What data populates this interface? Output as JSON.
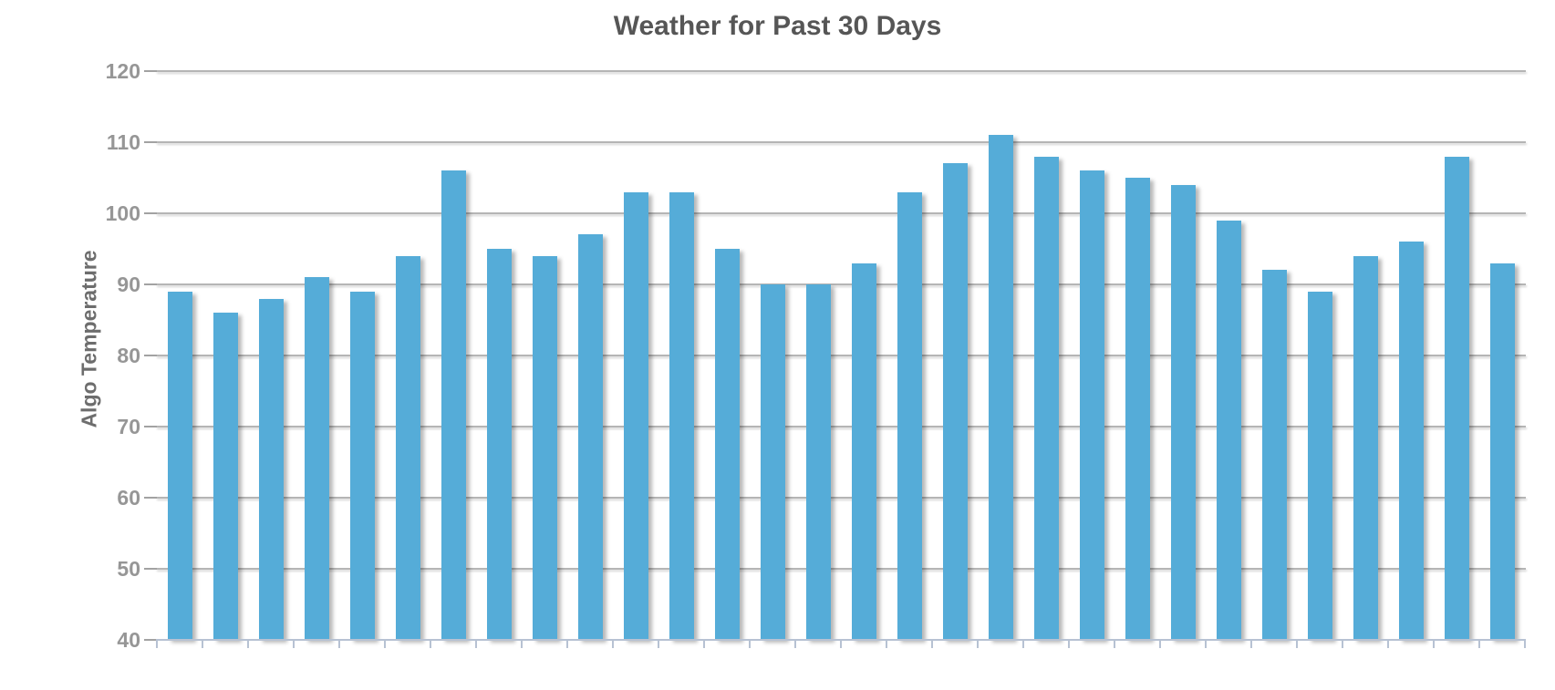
{
  "chart_data": {
    "type": "bar",
    "title": "Weather for Past 30 Days",
    "ylabel": "Algo Temperature",
    "xlabel": "",
    "values": [
      89,
      86,
      88,
      91,
      89,
      94,
      106,
      95,
      94,
      97,
      103,
      103,
      95,
      90,
      90,
      93,
      103,
      107,
      111,
      108,
      106,
      105,
      104,
      99,
      92,
      89,
      94,
      96,
      108,
      93
    ],
    "n_bars": 30,
    "ylim": [
      40,
      120
    ],
    "yticks": [
      40,
      50,
      60,
      70,
      80,
      90,
      100,
      110,
      120
    ],
    "grid": true,
    "legend": "none",
    "x_tick_labels": "none",
    "colors": {
      "bar": "#55ACD8",
      "gridline": "#B5B5B5",
      "axis_line": "#B7C2D3",
      "tick_label": "#969696",
      "title": "#565656",
      "ylabel": "#6D6D6D"
    }
  }
}
